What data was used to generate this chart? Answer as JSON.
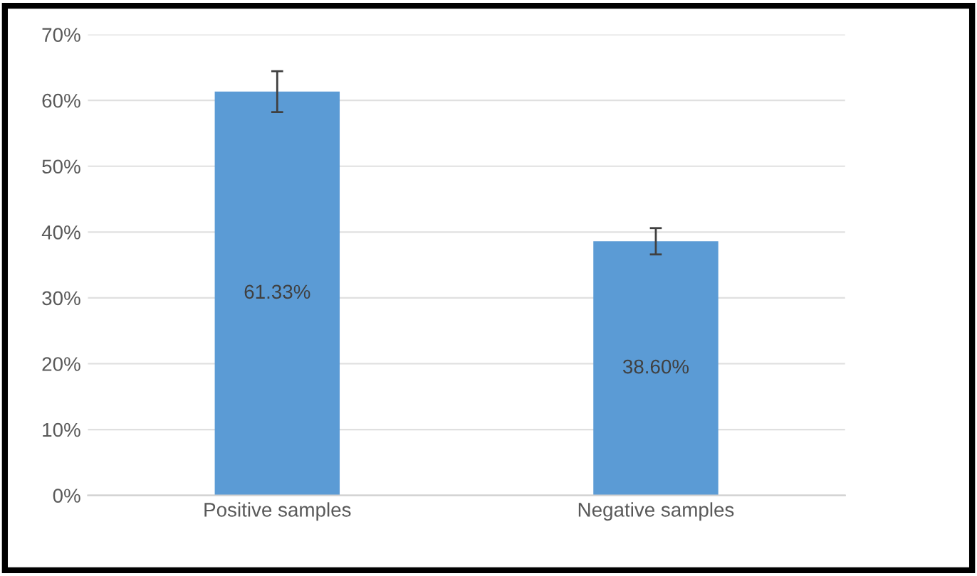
{
  "chart_data": {
    "type": "bar",
    "categories": [
      "Positive samples",
      "Negative samples"
    ],
    "values": [
      61.33,
      38.6
    ],
    "value_labels": [
      "61.33%",
      "38.60%"
    ],
    "errors": [
      3.1,
      2.0
    ],
    "color": "#5b9bd5",
    "ylim": [
      0,
      70
    ],
    "yticks": [
      {
        "value": 0,
        "label": "0%"
      },
      {
        "value": 10,
        "label": "10%"
      },
      {
        "value": 20,
        "label": "20%"
      },
      {
        "value": 30,
        "label": "30%"
      },
      {
        "value": 40,
        "label": "40%"
      },
      {
        "value": 50,
        "label": "50%"
      },
      {
        "value": 60,
        "label": "60%"
      },
      {
        "value": 70,
        "label": "70%"
      }
    ],
    "grid": "y"
  }
}
